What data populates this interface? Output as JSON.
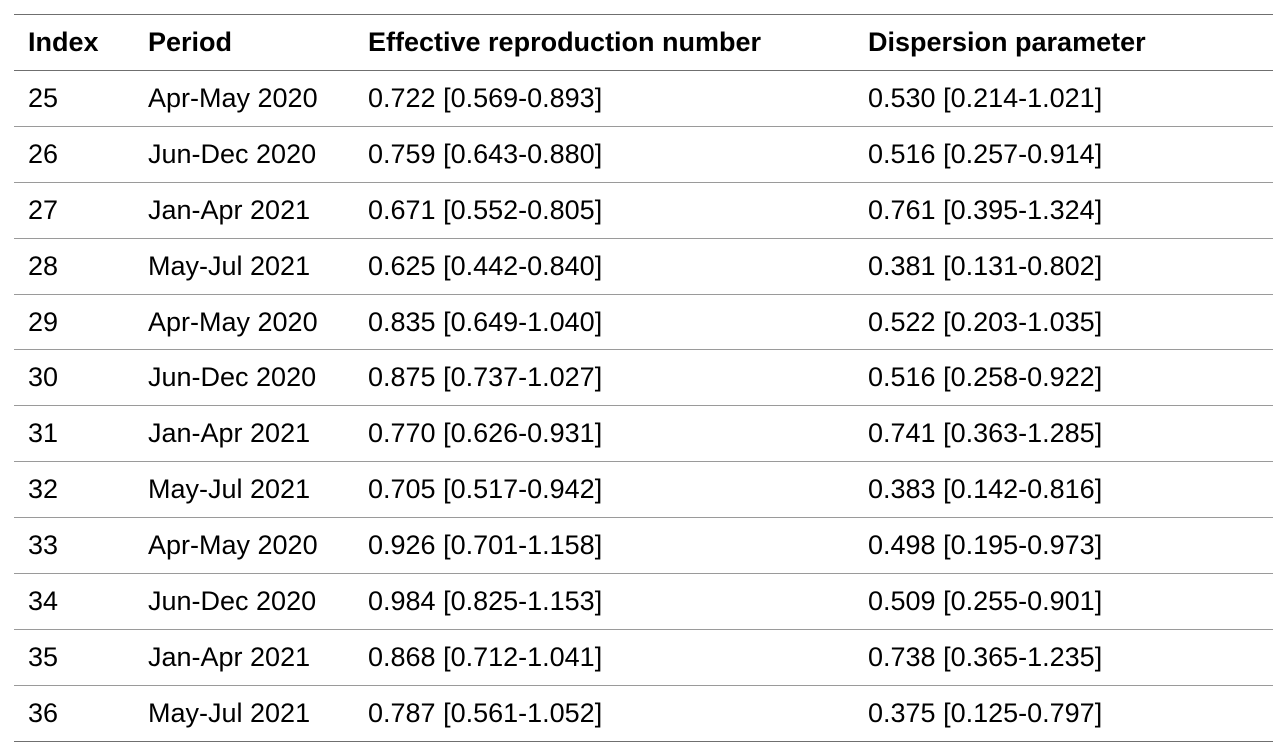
{
  "table": {
    "headers": {
      "index": "Index",
      "period": "Period",
      "reff": "Effective reproduction number",
      "dispersion": "Dispersion parameter"
    },
    "rows": [
      {
        "index": "25",
        "period": "Apr-May 2020",
        "reff": "0.722 [0.569-0.893]",
        "dispersion": "0.530 [0.214-1.021]"
      },
      {
        "index": "26",
        "period": "Jun-Dec 2020",
        "reff": "0.759 [0.643-0.880]",
        "dispersion": "0.516 [0.257-0.914]"
      },
      {
        "index": "27",
        "period": "Jan-Apr 2021",
        "reff": "0.671 [0.552-0.805]",
        "dispersion": "0.761 [0.395-1.324]"
      },
      {
        "index": "28",
        "period": "May-Jul 2021",
        "reff": "0.625 [0.442-0.840]",
        "dispersion": "0.381 [0.131-0.802]"
      },
      {
        "index": "29",
        "period": "Apr-May 2020",
        "reff": "0.835 [0.649-1.040]",
        "dispersion": "0.522 [0.203-1.035]"
      },
      {
        "index": "30",
        "period": "Jun-Dec 2020",
        "reff": "0.875 [0.737-1.027]",
        "dispersion": "0.516 [0.258-0.922]"
      },
      {
        "index": "31",
        "period": "Jan-Apr 2021",
        "reff": "0.770 [0.626-0.931]",
        "dispersion": "0.741 [0.363-1.285]"
      },
      {
        "index": "32",
        "period": "May-Jul 2021",
        "reff": "0.705 [0.517-0.942]",
        "dispersion": "0.383 [0.142-0.816]"
      },
      {
        "index": "33",
        "period": "Apr-May 2020",
        "reff": "0.926 [0.701-1.158]",
        "dispersion": "0.498 [0.195-0.973]"
      },
      {
        "index": "34",
        "period": "Jun-Dec 2020",
        "reff": "0.984 [0.825-1.153]",
        "dispersion": "0.509 [0.255-0.901]"
      },
      {
        "index": "35",
        "period": "Jan-Apr 2021",
        "reff": "0.868 [0.712-1.041]",
        "dispersion": "0.738 [0.365-1.235]"
      },
      {
        "index": "36",
        "period": "May-Jul 2021",
        "reff": "0.787 [0.561-1.052]",
        "dispersion": "0.375 [0.125-0.797]"
      }
    ]
  }
}
